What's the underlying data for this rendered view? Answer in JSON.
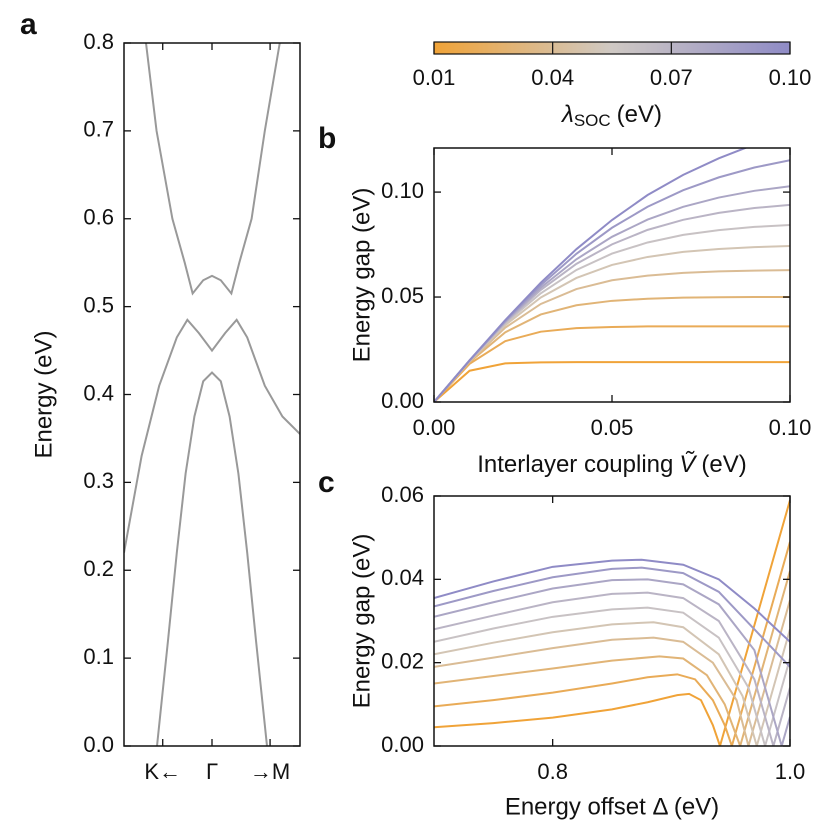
{
  "chart_data": [
    {
      "type": "line",
      "panel_label": "a",
      "ylabel": "Energy (eV)",
      "xlim": [
        -1,
        1
      ],
      "ylim": [
        0,
        0.8
      ],
      "xticks": [
        {
          "value": -0.56,
          "label": "K←"
        },
        {
          "value": 0,
          "label": "Γ"
        },
        {
          "value": 0.66,
          "label": "→M"
        }
      ],
      "yticks": [
        {
          "value": 0,
          "label": "0.0"
        },
        0.1,
        0.2,
        0.3,
        0.4,
        0.5,
        0.6,
        0.7,
        0.8
      ],
      "series": [
        {
          "color": "#999999",
          "x": [
            -0.625,
            -0.5,
            -0.4,
            -0.3,
            -0.2,
            -0.1,
            0,
            0.1,
            0.2,
            0.3,
            0.4,
            0.5,
            0.625
          ],
          "values": [
            0,
            0.12,
            0.22,
            0.31,
            0.375,
            0.415,
            0.425,
            0.415,
            0.375,
            0.31,
            0.22,
            0.12,
            0
          ]
        },
        {
          "color": "#999999",
          "x": [
            -1,
            -0.8,
            -0.6,
            -0.4,
            -0.28,
            -0.15,
            0,
            0.15,
            0.28,
            0.4,
            0.6,
            0.8,
            1
          ],
          "values": [
            0.22,
            0.33,
            0.41,
            0.465,
            0.485,
            0.47,
            0.45,
            0.47,
            0.485,
            0.465,
            0.41,
            0.375,
            0.355
          ]
        },
        {
          "color": "#999999",
          "x": [
            -0.75,
            -0.63,
            -0.45,
            -0.31,
            -0.22,
            -0.1,
            0,
            0.1,
            0.22,
            0.31,
            0.45,
            0.6,
            0.77
          ],
          "values": [
            0.8,
            0.7,
            0.6,
            0.55,
            0.515,
            0.53,
            0.535,
            0.53,
            0.515,
            0.55,
            0.6,
            0.7,
            0.8
          ]
        }
      ]
    },
    {
      "type": "colorbar",
      "colors": [
        "#f0a338",
        "#cfc9c4",
        "#8f8bc6"
      ],
      "clim": [
        0.01,
        0.1
      ],
      "ticks": [
        0.01,
        0.04,
        0.07,
        {
          "value": 0.1,
          "label": "0.10"
        }
      ],
      "label": {
        "symbol": "λ",
        "subscript": "SOC",
        "unit": "(eV)"
      }
    },
    {
      "type": "line",
      "panel_label": "b",
      "ylabel": "Energy gap (eV)",
      "xlabel": {
        "text": "Interlayer coupling",
        "symbol": "Ṽ",
        "unit": "(eV)"
      },
      "xlim": [
        0,
        0.1
      ],
      "ylim": [
        0,
        0.121
      ],
      "xticks": [
        {
          "value": 0,
          "label": "0.00"
        },
        0.05,
        {
          "value": 0.1,
          "label": "0.10"
        }
      ],
      "yticks": [
        {
          "value": 0,
          "label": "0.00"
        },
        0.05,
        {
          "value": 0.1,
          "label": "0.10"
        }
      ],
      "x": [
        0,
        0.01,
        0.02,
        0.03,
        0.04,
        0.05,
        0.06,
        0.07,
        0.08,
        0.09,
        0.1
      ],
      "series": [
        {
          "color": "#f0a338",
          "values": [
            0,
            0.0149,
            0.0184,
            0.0189,
            0.019,
            0.019,
            0.019,
            0.019,
            0.019,
            0.019,
            0.019
          ]
        },
        {
          "color": "#e9ab57",
          "values": [
            0,
            0.0182,
            0.029,
            0.0335,
            0.0352,
            0.0357,
            0.036,
            0.036,
            0.036,
            0.036,
            0.036
          ]
        },
        {
          "color": "#e1b476",
          "values": [
            0,
            0.019,
            0.0332,
            0.0417,
            0.0461,
            0.0482,
            0.0492,
            0.0497,
            0.0499,
            0.05,
            0.05
          ]
        },
        {
          "color": "#dabc95",
          "values": [
            0,
            0.0193,
            0.0354,
            0.0467,
            0.0538,
            0.058,
            0.0602,
            0.0615,
            0.0622,
            0.0626,
            0.0628
          ]
        },
        {
          "color": "#d3c5b4",
          "values": [
            0,
            0.0196,
            0.0366,
            0.0498,
            0.0591,
            0.0653,
            0.0691,
            0.0715,
            0.0729,
            0.0738,
            0.0743
          ]
        },
        {
          "color": "#c8c2c4",
          "values": [
            0,
            0.0197,
            0.0374,
            0.0518,
            0.0629,
            0.0707,
            0.076,
            0.0796,
            0.0819,
            0.0834,
            0.0843
          ]
        },
        {
          "color": "#bab4c5",
          "values": [
            0,
            0.0197,
            0.0379,
            0.0534,
            0.0658,
            0.0751,
            0.082,
            0.0868,
            0.0901,
            0.0924,
            0.0939
          ]
        },
        {
          "color": "#aba6c5",
          "values": [
            0,
            0.0198,
            0.0383,
            0.0545,
            0.068,
            0.0787,
            0.0869,
            0.093,
            0.0974,
            0.1006,
            0.1028
          ]
        },
        {
          "color": "#9d99c6",
          "values": [
            0,
            0.0198,
            0.0387,
            0.0557,
            0.0706,
            0.083,
            0.093,
            0.1009,
            0.107,
            0.1117,
            0.1152
          ]
        },
        {
          "color": "#8f8bc6",
          "values": [
            0,
            0.0199,
            0.039,
            0.0568,
            0.0728,
            0.0867,
            0.0986,
            0.1082,
            0.1161,
            0.1227,
            0.1277
          ]
        }
      ]
    },
    {
      "type": "line",
      "panel_label": "c",
      "ylabel": "Energy gap (eV)",
      "xlabel": "Energy offset Δ (eV)",
      "xlim": [
        0.7,
        1.0
      ],
      "ylim": [
        0,
        0.06
      ],
      "xticks": [
        0.8,
        {
          "value": 1.0,
          "label": "1.0"
        }
      ],
      "yticks": [
        {
          "value": 0,
          "label": "0.00"
        },
        0.02,
        0.04,
        0.06
      ],
      "series": [
        {
          "color": "#f0a338",
          "x": [
            0.7,
            0.75,
            0.8,
            0.85,
            0.88,
            0.905,
            0.915,
            0.925,
            0.935,
            0.941,
            1.0
          ],
          "values": [
            0.0045,
            0.0055,
            0.0068,
            0.0088,
            0.0105,
            0.0122,
            0.0125,
            0.011,
            0.005,
            0,
            0.059
          ]
        },
        {
          "color": "#e9ab57",
          "x": [
            0.7,
            0.75,
            0.8,
            0.85,
            0.88,
            0.905,
            0.92,
            0.935,
            0.945,
            0.951,
            1.0
          ],
          "values": [
            0.0095,
            0.011,
            0.0128,
            0.015,
            0.0165,
            0.0172,
            0.016,
            0.011,
            0.005,
            0,
            0.049
          ]
        },
        {
          "color": "#e1b476",
          "x": [
            0.7,
            0.75,
            0.8,
            0.85,
            0.89,
            0.91,
            0.93,
            0.945,
            0.958,
            1.0
          ],
          "values": [
            0.015,
            0.0168,
            0.0186,
            0.0205,
            0.0215,
            0.021,
            0.017,
            0.01,
            0,
            0.042
          ]
        },
        {
          "color": "#dabc95",
          "x": [
            0.7,
            0.75,
            0.8,
            0.85,
            0.885,
            0.91,
            0.935,
            0.955,
            0.965,
            1.0
          ],
          "values": [
            0.019,
            0.0212,
            0.0235,
            0.0255,
            0.026,
            0.025,
            0.02,
            0.011,
            0,
            0.035
          ]
        },
        {
          "color": "#d3c5b4",
          "x": [
            0.7,
            0.75,
            0.8,
            0.85,
            0.885,
            0.91,
            0.94,
            0.96,
            0.972,
            1.0
          ],
          "values": [
            0.022,
            0.0248,
            0.0273,
            0.0292,
            0.0297,
            0.0285,
            0.022,
            0.012,
            0,
            0.028
          ]
        },
        {
          "color": "#c8c2c4",
          "x": [
            0.7,
            0.75,
            0.8,
            0.85,
            0.88,
            0.91,
            0.94,
            0.965,
            0.979,
            1.0
          ],
          "values": [
            0.025,
            0.0282,
            0.031,
            0.0328,
            0.0332,
            0.032,
            0.026,
            0.014,
            0,
            0.021
          ]
        },
        {
          "color": "#bab4c5",
          "x": [
            0.7,
            0.75,
            0.8,
            0.85,
            0.88,
            0.91,
            0.94,
            0.97,
            0.986,
            1.0
          ],
          "values": [
            0.028,
            0.0313,
            0.0345,
            0.0365,
            0.0368,
            0.0355,
            0.03,
            0.016,
            0,
            0.014
          ]
        },
        {
          "color": "#aba6c5",
          "x": [
            0.7,
            0.75,
            0.8,
            0.85,
            0.88,
            0.91,
            0.94,
            0.97,
            0.993,
            1.0
          ],
          "values": [
            0.031,
            0.0345,
            0.0378,
            0.0398,
            0.04,
            0.0388,
            0.034,
            0.023,
            0,
            0.007
          ]
        },
        {
          "color": "#9d99c6",
          "x": [
            0.7,
            0.75,
            0.8,
            0.85,
            0.875,
            0.91,
            0.94,
            0.97,
            1.0
          ],
          "values": [
            0.0335,
            0.0372,
            0.0405,
            0.0425,
            0.0428,
            0.0415,
            0.037,
            0.028,
            0.019
          ]
        },
        {
          "color": "#8f8bc6",
          "x": [
            0.7,
            0.75,
            0.8,
            0.85,
            0.875,
            0.91,
            0.94,
            0.97,
            1.0
          ],
          "values": [
            0.0355,
            0.0395,
            0.043,
            0.0445,
            0.0447,
            0.0435,
            0.04,
            0.033,
            0.025
          ]
        }
      ]
    }
  ]
}
